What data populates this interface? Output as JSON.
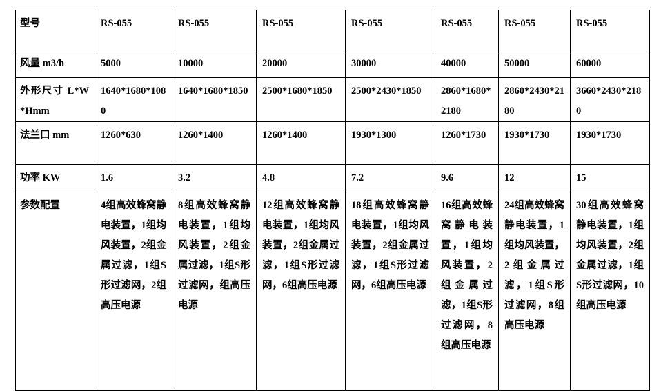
{
  "rows": [
    {
      "label": "型号",
      "values": [
        "RS-055",
        "RS-055",
        "RS-055",
        "RS-055",
        "RS-055",
        "RS-055",
        "RS-055"
      ]
    },
    {
      "label": "风量 m3/h",
      "values": [
        "5000",
        "10000",
        "20000",
        "30000",
        "40000",
        "50000",
        "60000"
      ]
    },
    {
      "label": "外形尺寸 L*W*Hmm",
      "values": [
        "1640*1680*1080",
        "1640*1680*1850",
        "2500*1680*1850",
        "2500*2430*1850",
        "2860*1680*2180",
        "2860*2430*2180",
        "3660*2430*2180"
      ]
    },
    {
      "label": "法兰口 mm",
      "values": [
        "1260*630",
        "1260*1400",
        "1260*1400",
        "1930*1300",
        "1260*1730",
        "1930*1730",
        "1930*1730"
      ]
    },
    {
      "label": "功率 KW",
      "values": [
        "1.6",
        "3.2",
        "4.8",
        "7.2",
        "9.6",
        "12",
        "15"
      ]
    },
    {
      "label": "参数配置",
      "values": [
        "4组高效蜂窝静电装置，1组均风装置，2组金属过滤，1组S形过滤网，2组高压电源",
        "8组高效蜂窝静电装置，1组均风装置，2组金属过滤，1组S形过滤网，组高压电源",
        "12组高效蜂窝静电装置，1组均风装置，2组金属过滤，1组S形过滤网，6组高压电源",
        "18组高效蜂窝静电装置，1组均风装置，2组金属过滤，1组S形过滤网，6组高压电源",
        "16组高效蜂窝静电装置，1组均风装置，2组金属过滤，1组S形过滤网，8组高压电源",
        "24组高效蜂窝静电装置，1组均风装置，2组金属过滤，1组S形过滤网，8组高压电源",
        "30组高效蜂窝静电装置，1组均风装置，2组金属过滤，1组S形过滤网，10组高压电源"
      ]
    }
  ]
}
